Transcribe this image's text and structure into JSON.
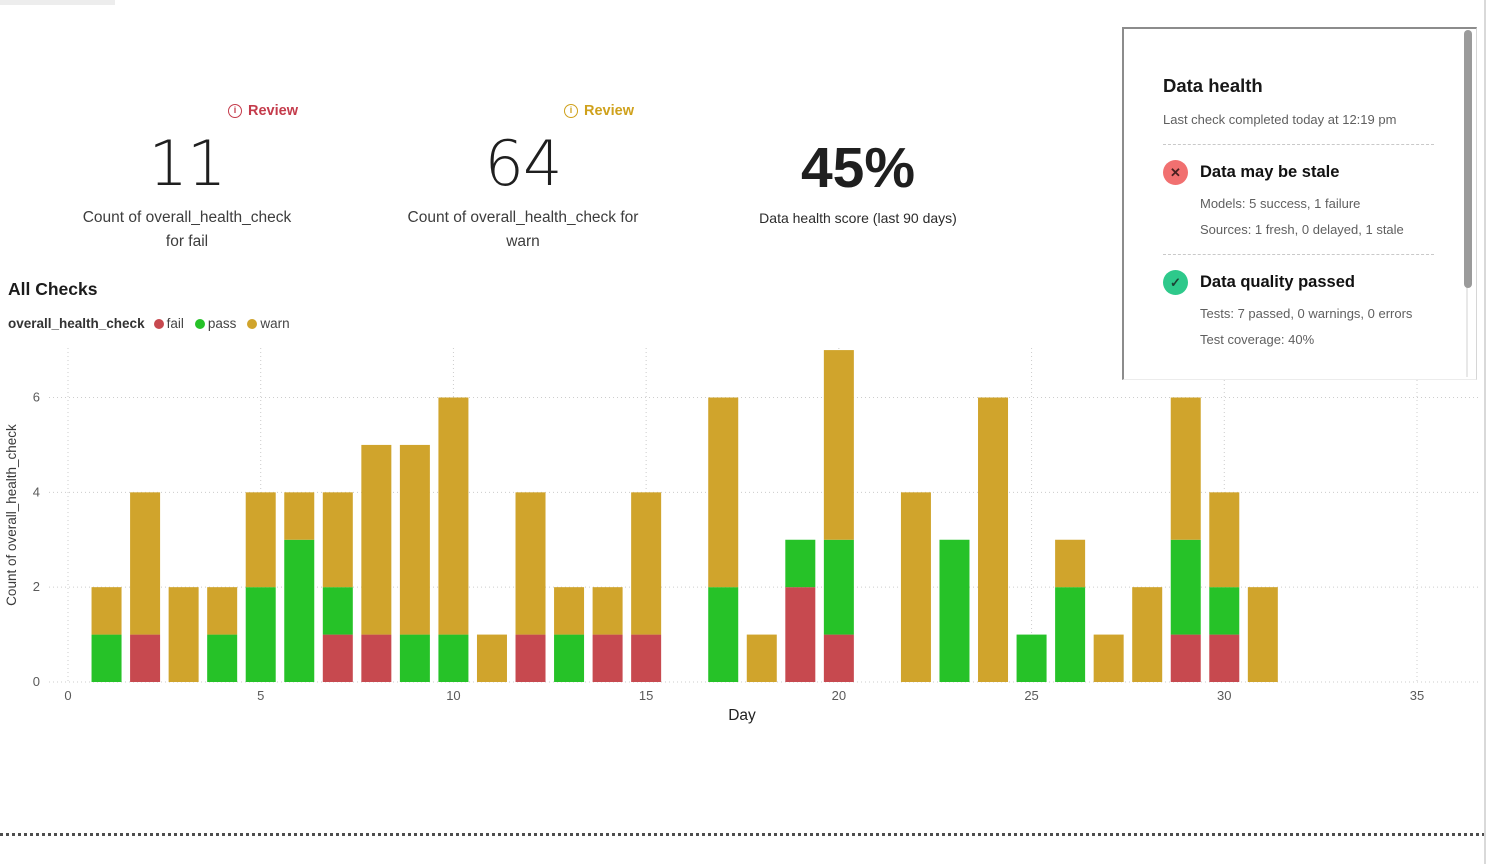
{
  "metrics": {
    "fail": {
      "review_label": "Review",
      "value": "11",
      "label_line1": "Count of overall_health_check",
      "label_line2": "for fail"
    },
    "warn": {
      "review_label": "Review",
      "value": "64",
      "label_line1": "Count of overall_health_check for",
      "label_line2": "warn"
    },
    "score": {
      "value": "45%",
      "label": "Data health score (last 90 days)"
    }
  },
  "icons": {
    "info": "i",
    "fail_x": "✕",
    "pass_check": "✓"
  },
  "colors": {
    "fail": "#c7494f",
    "pass": "#26c228",
    "warn": "#d0a42c",
    "review_fail": "#c43b4b",
    "review_warn": "#cfa11c",
    "fail_icon_bg": "#f17070",
    "fail_icon_glyph": "#4a2020",
    "pass_icon_bg": "#2ec98b",
    "pass_icon_glyph": "#1b4435",
    "gridline": "#cccccc",
    "tick_label": "#5a5a5a"
  },
  "health_panel": {
    "title": "Data health",
    "subtitle": "Last check completed today at 12:19 pm",
    "sections": [
      {
        "icon": "x-circle",
        "title": "Data may be stale",
        "lines": [
          "Models: 5 success, 1 failure",
          "Sources: 1 fresh, 0 delayed, 1 stale"
        ]
      },
      {
        "icon": "check-circle",
        "title": "Data quality passed",
        "lines": [
          "Tests: 7 passed, 0 warnings, 0 errors",
          "Test coverage: 40%"
        ]
      }
    ]
  },
  "chart_data": {
    "type": "bar",
    "stacked": true,
    "title": "All Checks",
    "legend_title": "overall_health_check",
    "legend": [
      {
        "name": "fail",
        "color": "#c7494f"
      },
      {
        "name": "pass",
        "color": "#26c228"
      },
      {
        "name": "warn",
        "color": "#d0a42c"
      }
    ],
    "xlabel": "Day",
    "ylabel": "Count of overall_health_check",
    "xlim": [
      0,
      35
    ],
    "ylim": [
      0,
      7
    ],
    "x_ticks": [
      0,
      5,
      10,
      15,
      20,
      25,
      30,
      35
    ],
    "y_ticks": [
      0,
      2,
      4,
      6
    ],
    "grid": "dotted",
    "x": [
      1,
      2,
      3,
      4,
      5,
      6,
      7,
      8,
      9,
      10,
      11,
      12,
      13,
      14,
      15,
      16,
      17,
      18,
      19,
      20,
      21,
      22,
      23,
      24,
      25,
      26,
      27,
      28,
      29,
      30,
      31
    ],
    "series": [
      {
        "name": "fail",
        "color": "#c7494f",
        "values": [
          0,
          1,
          0,
          0,
          0,
          0,
          1,
          1,
          0,
          0,
          0,
          1,
          0,
          1,
          1,
          0,
          0,
          0,
          2,
          1,
          0,
          0,
          0,
          0,
          0,
          0,
          0,
          0,
          1,
          1,
          0
        ]
      },
      {
        "name": "pass",
        "color": "#26c228",
        "values": [
          1,
          0,
          0,
          1,
          2,
          3,
          1,
          0,
          1,
          1,
          0,
          0,
          1,
          0,
          0,
          0,
          2,
          0,
          1,
          2,
          0,
          0,
          3,
          0,
          1,
          2,
          0,
          0,
          2,
          1,
          0
        ]
      },
      {
        "name": "warn",
        "color": "#d0a42c",
        "values": [
          1,
          3,
          2,
          1,
          2,
          1,
          2,
          4,
          4,
          5,
          1,
          3,
          1,
          1,
          3,
          0,
          4,
          1,
          0,
          4,
          0,
          4,
          0,
          6,
          0,
          1,
          1,
          2,
          3,
          2,
          2
        ]
      }
    ]
  }
}
